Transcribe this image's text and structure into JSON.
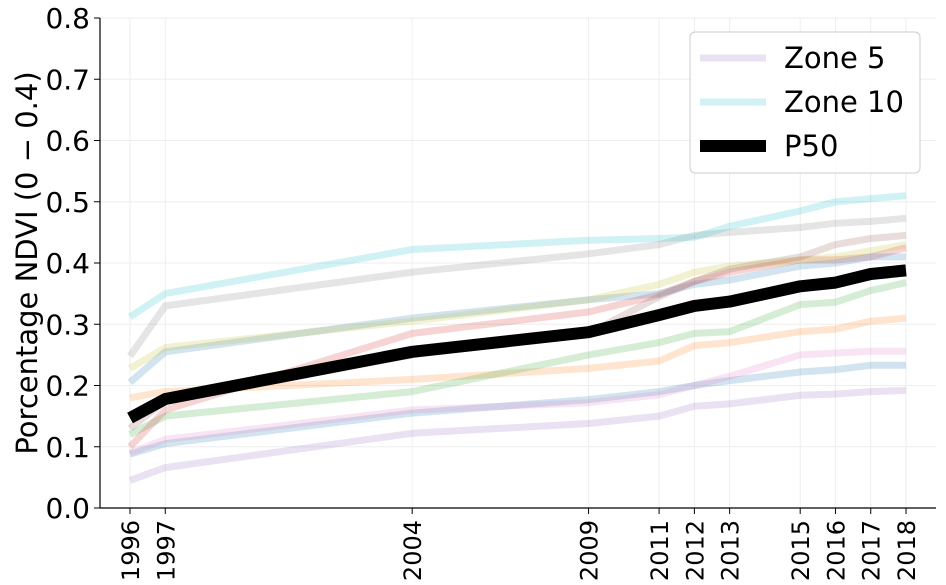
{
  "chart_data": {
    "type": "line",
    "ylabel": "Porcentage NDVI (0 − 0.4)",
    "xlabel": "",
    "x": [
      1996,
      1997,
      2004,
      2009,
      2011,
      2012,
      2013,
      2015,
      2016,
      2017,
      2018
    ],
    "x_tick_labels": [
      "1996",
      "1997",
      "2004",
      "2009",
      "2011",
      "2012",
      "2013",
      "2015",
      "2016",
      "2017",
      "2018"
    ],
    "ylim": [
      0.0,
      0.8
    ],
    "y_ticks": [
      0.0,
      0.1,
      0.2,
      0.3,
      0.4,
      0.5,
      0.6,
      0.7,
      0.8
    ],
    "y_tick_labels": [
      "0.0",
      "0.1",
      "0.2",
      "0.3",
      "0.4",
      "0.5",
      "0.6",
      "0.7",
      "0.8"
    ],
    "grid": true,
    "legend_position": "top-right",
    "series": [
      {
        "name": "Zone 5",
        "color": "#9467bd",
        "opacity": 0.2,
        "in_legend": true,
        "values": [
          0.045,
          0.066,
          0.122,
          0.138,
          0.15,
          0.166,
          0.17,
          0.184,
          0.186,
          0.19,
          0.192
        ]
      },
      {
        "color": "#1f77b4",
        "opacity": 0.2,
        "in_legend": false,
        "values": [
          0.088,
          0.105,
          0.155,
          0.177,
          0.19,
          0.2,
          0.208,
          0.222,
          0.226,
          0.233,
          0.233
        ]
      },
      {
        "color": "#e377c2",
        "opacity": 0.2,
        "in_legend": false,
        "values": [
          0.09,
          0.112,
          0.16,
          0.172,
          0.185,
          0.2,
          0.215,
          0.25,
          0.253,
          0.256,
          0.256
        ]
      },
      {
        "color": "#ff7f0e",
        "opacity": 0.2,
        "in_legend": false,
        "values": [
          0.18,
          0.19,
          0.21,
          0.228,
          0.24,
          0.265,
          0.27,
          0.288,
          0.292,
          0.305,
          0.31
        ]
      },
      {
        "color": "#2ca02c",
        "opacity": 0.2,
        "in_legend": false,
        "values": [
          0.12,
          0.15,
          0.19,
          0.25,
          0.27,
          0.285,
          0.288,
          0.332,
          0.336,
          0.355,
          0.368
        ]
      },
      {
        "color": "#d62728",
        "opacity": 0.2,
        "in_legend": false,
        "values": [
          0.1,
          0.16,
          0.285,
          0.32,
          0.348,
          0.37,
          0.385,
          0.405,
          0.405,
          0.41,
          0.425
        ]
      },
      {
        "color": "#1f77b4",
        "opacity": 0.2,
        "in_legend": false,
        "values": [
          0.205,
          0.255,
          0.31,
          0.34,
          0.35,
          0.365,
          0.372,
          0.395,
          0.4,
          0.41,
          0.41
        ]
      },
      {
        "color": "#bcbd22",
        "opacity": 0.2,
        "in_legend": false,
        "values": [
          0.228,
          0.262,
          0.305,
          0.34,
          0.365,
          0.385,
          0.395,
          0.405,
          0.41,
          0.42,
          0.43
        ]
      },
      {
        "color": "#8c564b",
        "opacity": 0.2,
        "in_legend": false,
        "values": [
          0.13,
          0.175,
          0.25,
          0.285,
          0.345,
          0.37,
          0.39,
          0.41,
          0.43,
          0.44,
          0.445
        ]
      },
      {
        "color": "#7f7f7f",
        "opacity": 0.2,
        "in_legend": false,
        "values": [
          0.248,
          0.33,
          0.385,
          0.415,
          0.43,
          0.445,
          0.45,
          0.458,
          0.465,
          0.468,
          0.473
        ]
      },
      {
        "name": "Zone 10",
        "color": "#17becf",
        "opacity": 0.2,
        "in_legend": true,
        "values": [
          0.312,
          0.35,
          0.422,
          0.437,
          0.44,
          0.442,
          0.46,
          0.485,
          0.5,
          0.505,
          0.51
        ]
      },
      {
        "name": "P50",
        "color": "#000000",
        "opacity": 1.0,
        "in_legend": true,
        "bold": true,
        "values": [
          0.147,
          0.178,
          0.255,
          0.287,
          0.315,
          0.33,
          0.337,
          0.362,
          0.368,
          0.382,
          0.388
        ]
      }
    ],
    "legend": [
      "Zone 5",
      "Zone 10",
      "P50"
    ]
  }
}
